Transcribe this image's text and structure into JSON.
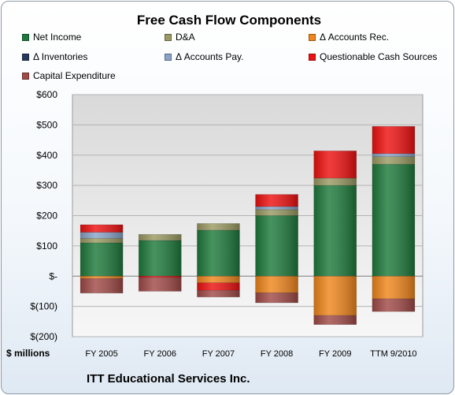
{
  "chart_data": {
    "type": "stacked-bar",
    "title": "Free Cash Flow Components",
    "unit_label": "$ millions",
    "ylim": [
      -200,
      600
    ],
    "y_ticks": [
      {
        "value": 600,
        "label": "$600"
      },
      {
        "value": 500,
        "label": "$500"
      },
      {
        "value": 400,
        "label": "$400"
      },
      {
        "value": 300,
        "label": "$300"
      },
      {
        "value": 200,
        "label": "$200"
      },
      {
        "value": 100,
        "label": "$100"
      },
      {
        "value": 0,
        "label": "$-"
      },
      {
        "value": -100,
        "label": "$(100)"
      },
      {
        "value": -200,
        "label": "$(200)"
      }
    ],
    "categories": [
      "FY 2005",
      "FY 2006",
      "FY 2007",
      "FY 2008",
      "FY 2009",
      "TTM 9/2010"
    ],
    "legend_position": "top",
    "series": [
      {
        "name": "Net Income",
        "color": "#1e7a3c",
        "values": [
          110,
          118,
          152,
          200,
          300,
          370
        ]
      },
      {
        "name": "D&A",
        "color": "#9a9a63",
        "values": [
          15,
          20,
          22,
          20,
          24,
          25
        ]
      },
      {
        "name": "Δ Accounts Rec.",
        "color": "#f0861d",
        "values": [
          -8,
          0,
          -22,
          -55,
          -130,
          -75
        ]
      },
      {
        "name": "Δ Inventories",
        "color": "#243a5c",
        "values": [
          0,
          0,
          0,
          0,
          0,
          0
        ]
      },
      {
        "name": "Δ Accounts Pay.",
        "color": "#8aa4c7",
        "values": [
          20,
          0,
          0,
          10,
          0,
          10
        ]
      },
      {
        "name": "Questionable Cash Sources",
        "color": "#ee1111",
        "values": [
          25,
          -5,
          -25,
          40,
          90,
          90
        ]
      },
      {
        "name": "Capital Expenditure",
        "color": "#a04a47",
        "values": [
          -48,
          -45,
          -22,
          -33,
          -30,
          -42
        ]
      }
    ]
  },
  "footer": "ITT Educational Services Inc."
}
